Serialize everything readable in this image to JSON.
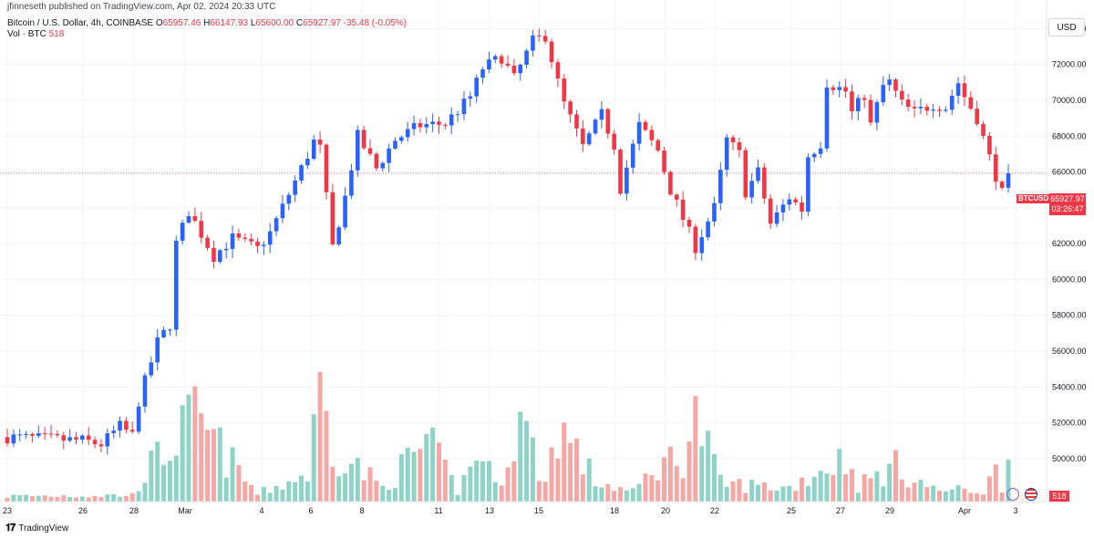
{
  "header": {
    "published": "jfinneseth published on TradingView.com, Apr 02, 2024 20:33 UTC",
    "symbol_line": "Bitcoin / U.S. Dollar, 4h, COINBASE",
    "open_label": "O",
    "open": "65957.46",
    "high_label": "H",
    "high": "66147.93",
    "low_label": "L",
    "low": "65600.00",
    "close_label": "C",
    "close": "65927.97",
    "change": "-35.48 (-0.05%)",
    "volume_line": "Vol · BTC",
    "volume_value": "518"
  },
  "price_scale": {
    "currency": "USD"
  },
  "last_price": {
    "symbol": "BTCUSD",
    "price": "65927.97",
    "countdown": "03:26:47"
  },
  "volume_tag": "518",
  "footer": {
    "logo": "𝟏𝟕",
    "brand": "TradingView"
  },
  "colors": {
    "up": "#2962ff",
    "down": "#f23645",
    "vol_up": "#8fd3c7",
    "vol_down": "#f4a7a4",
    "grid": "#f0f3fa"
  },
  "chart_data": {
    "type": "candlestick",
    "interval": "4h",
    "ylim": [
      47600,
      75600
    ],
    "y_ticks": [
      50000,
      52000,
      54000,
      56000,
      58000,
      60000,
      62000,
      64000,
      66000,
      68000,
      70000,
      72000,
      74000
    ],
    "x_ticks": [
      "23",
      "26",
      "28",
      "Mar",
      "4",
      "6",
      "8",
      "11",
      "13",
      "15",
      "18",
      "20",
      "22",
      "25",
      "27",
      "29",
      "Apr",
      "3"
    ],
    "last_close": 65927.97,
    "close_path": [
      [
        0,
        51200
      ],
      [
        12,
        51000
      ],
      [
        15,
        50800
      ],
      [
        18,
        51800
      ],
      [
        20,
        51300
      ],
      [
        21,
        53200
      ],
      [
        24,
        56500
      ],
      [
        26,
        57500
      ],
      [
        27,
        62000
      ],
      [
        29,
        63800
      ],
      [
        33,
        61300
      ],
      [
        36,
        62300
      ],
      [
        40,
        61700
      ],
      [
        42,
        62600
      ],
      [
        47,
        66200
      ],
      [
        49,
        67700
      ],
      [
        50,
        67300
      ],
      [
        52,
        61800
      ],
      [
        54,
        64600
      ],
      [
        56,
        68000
      ],
      [
        59,
        66200
      ],
      [
        62,
        67800
      ],
      [
        66,
        68600
      ],
      [
        70,
        68700
      ],
      [
        73,
        69800
      ],
      [
        74,
        70200
      ],
      [
        76,
        71800
      ],
      [
        79,
        72400
      ],
      [
        81,
        71200
      ],
      [
        84,
        73300
      ],
      [
        86,
        73600
      ],
      [
        88,
        71000
      ],
      [
        89,
        69800
      ],
      [
        92,
        67400
      ],
      [
        95,
        69200
      ],
      [
        97,
        67500
      ],
      [
        98,
        65100
      ],
      [
        101,
        68600
      ],
      [
        104,
        67200
      ],
      [
        106,
        65000
      ],
      [
        108,
        63400
      ],
      [
        110,
        61800
      ],
      [
        113,
        64000
      ],
      [
        115,
        67800
      ],
      [
        117,
        67000
      ],
      [
        118,
        64900
      ],
      [
        120,
        66000
      ],
      [
        122,
        63100
      ],
      [
        125,
        64600
      ],
      [
        127,
        63900
      ],
      [
        128,
        66900
      ],
      [
        130,
        67600
      ],
      [
        131,
        71000
      ],
      [
        134,
        70500
      ],
      [
        135,
        69300
      ],
      [
        137,
        70300
      ],
      [
        138,
        68600
      ],
      [
        140,
        70800
      ],
      [
        141,
        71000
      ],
      [
        143,
        69800
      ],
      [
        145,
        69300
      ],
      [
        148,
        69800
      ],
      [
        150,
        69600
      ],
      [
        152,
        71000
      ],
      [
        153,
        70200
      ],
      [
        155,
        69000
      ],
      [
        157,
        66800
      ],
      [
        159,
        64800
      ],
      [
        160,
        65928
      ]
    ],
    "volume_path": [
      [
        0,
        600
      ],
      [
        20,
        700
      ],
      [
        22,
        3200
      ],
      [
        30,
        9000
      ],
      [
        40,
        800
      ],
      [
        48,
        3000
      ],
      [
        50,
        12000
      ],
      [
        52,
        6000
      ],
      [
        60,
        1500
      ],
      [
        67,
        6500
      ],
      [
        72,
        1200
      ],
      [
        76,
        6000
      ],
      [
        78,
        1500
      ],
      [
        82,
        9000
      ],
      [
        86,
        2000
      ],
      [
        88,
        8500
      ],
      [
        94,
        2200
      ],
      [
        100,
        1000
      ],
      [
        104,
        4000
      ],
      [
        108,
        5000
      ],
      [
        110,
        9200
      ],
      [
        114,
        2000
      ],
      [
        125,
        1500
      ],
      [
        130,
        3500
      ],
      [
        134,
        4800
      ],
      [
        136,
        1800
      ],
      [
        142,
        3800
      ],
      [
        148,
        1300
      ],
      [
        156,
        1200
      ],
      [
        158,
        3200
      ],
      [
        160,
        518
      ]
    ],
    "vol_max": 13000
  }
}
